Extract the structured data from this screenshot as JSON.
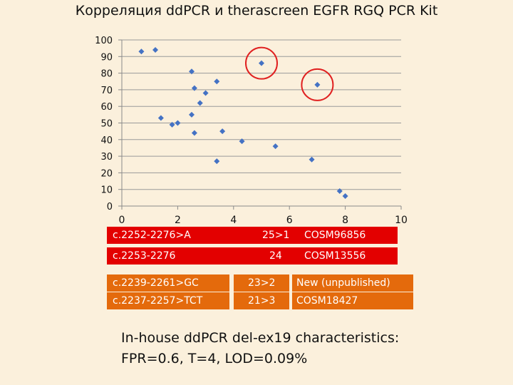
{
  "title": "Корреляция ddPCR и therascreen EGFR RGQ PCR Kit",
  "chart_data": {
    "type": "scatter",
    "title": "Корреляция ddPCR и therascreen EGFR RGQ PCR Kit",
    "xlabel": "",
    "ylabel": "",
    "xlim": [
      0,
      10
    ],
    "ylim": [
      0,
      100
    ],
    "xticks": [
      "0",
      "2",
      "4",
      "6",
      "8",
      "10"
    ],
    "yticks": [
      "0",
      "10",
      "20",
      "30",
      "40",
      "50",
      "60",
      "70",
      "80",
      "90",
      "100"
    ],
    "grid": true,
    "marker_color": "#4472c4",
    "highlight_color": "#e02020",
    "points": [
      {
        "x": 0.7,
        "y": 93
      },
      {
        "x": 1.2,
        "y": 94
      },
      {
        "x": 1.4,
        "y": 53
      },
      {
        "x": 1.8,
        "y": 49
      },
      {
        "x": 2.0,
        "y": 50
      },
      {
        "x": 2.5,
        "y": 81
      },
      {
        "x": 2.6,
        "y": 71
      },
      {
        "x": 2.5,
        "y": 55
      },
      {
        "x": 2.6,
        "y": 44
      },
      {
        "x": 2.8,
        "y": 62
      },
      {
        "x": 3.0,
        "y": 68
      },
      {
        "x": 3.4,
        "y": 75
      },
      {
        "x": 3.6,
        "y": 45
      },
      {
        "x": 3.4,
        "y": 27
      },
      {
        "x": 4.3,
        "y": 39
      },
      {
        "x": 5.0,
        "y": 86
      },
      {
        "x": 5.5,
        "y": 36
      },
      {
        "x": 6.8,
        "y": 28
      },
      {
        "x": 7.0,
        "y": 73
      },
      {
        "x": 7.8,
        "y": 9
      },
      {
        "x": 8.0,
        "y": 6
      }
    ],
    "highlighted": [
      {
        "x": 5.0,
        "y": 86
      },
      {
        "x": 7.0,
        "y": 73
      }
    ]
  },
  "mutations": [
    {
      "name": "c.2252-2276>A",
      "value": "25>1",
      "cosm": "COSM96856",
      "color": "#e30000"
    },
    {
      "name": "c.2253-2276",
      "value": "24",
      "cosm": "COSM13556",
      "color": "#e30000"
    },
    {
      "name": "c.2239-2261>GC",
      "value": "23>2",
      "cosm": "New (unpublished)",
      "color": "#e46a0c"
    },
    {
      "name": "c.2237-2257>TCT",
      "value": "21>3",
      "cosm": "COSM18427",
      "color": "#e46a0c"
    }
  ],
  "note": {
    "line1": "In-house ddPCR del-ex19 characteristics:",
    "line2": "FPR=0.6, T=4, LOD=0.09%"
  }
}
